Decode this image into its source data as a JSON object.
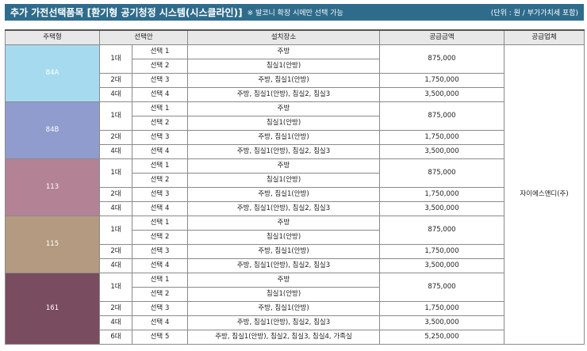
{
  "header": {
    "title": "추가 가전선택품목 [환기형 공기청정 시스템(시스클라인)]",
    "note": "※ 발코니 확장 시에만 선택 가능",
    "unit": "(단위 : 원 / 부가가치세 포함)"
  },
  "columns": [
    "주택형",
    "선택안",
    "설치장소",
    "공급금액",
    "공급업체"
  ],
  "vendor": "자이에스앤디(주)",
  "groups": [
    {
      "type": "84A",
      "color": "#a6dbef",
      "rows": [
        {
          "units": "1대",
          "option": "선택 1",
          "place": "주방",
          "price": "875,000"
        },
        {
          "units": "1대",
          "option": "선택 2",
          "place": "침실1(안방)",
          "price": "875,000"
        },
        {
          "units": "2대",
          "option": "선택 3",
          "place": "주방, 침실1(안방)",
          "price": "1,750,000"
        },
        {
          "units": "4대",
          "option": "선택 4",
          "place": "주방, 침실1(안방), 침실2, 침실3",
          "price": "3,500,000"
        }
      ]
    },
    {
      "type": "84B",
      "color": "#8f9ccd",
      "rows": [
        {
          "units": "1대",
          "option": "선택 1",
          "place": "주방",
          "price": "875,000"
        },
        {
          "units": "1대",
          "option": "선택 2",
          "place": "침실1(안방)",
          "price": "875,000"
        },
        {
          "units": "2대",
          "option": "선택 3",
          "place": "주방, 침실1(안방)",
          "price": "1,750,000"
        },
        {
          "units": "4대",
          "option": "선택 4",
          "place": "주방, 침실1(안방), 침실2, 침실3",
          "price": "3,500,000"
        }
      ]
    },
    {
      "type": "113",
      "color": "#b38294",
      "rows": [
        {
          "units": "1대",
          "option": "선택 1",
          "place": "주방",
          "price": "875,000"
        },
        {
          "units": "1대",
          "option": "선택 2",
          "place": "침실1(안방)",
          "price": "875,000"
        },
        {
          "units": "2대",
          "option": "선택 3",
          "place": "주방, 침실1(안방)",
          "price": "1,750,000"
        },
        {
          "units": "4대",
          "option": "선택 4",
          "place": "주방, 침실1(안방), 침실2, 침실3",
          "price": "3,500,000"
        }
      ]
    },
    {
      "type": "115",
      "color": "#b39a80",
      "rows": [
        {
          "units": "1대",
          "option": "선택 1",
          "place": "주방",
          "price": "875,000"
        },
        {
          "units": "1대",
          "option": "선택 2",
          "place": "침실1(안방)",
          "price": "875,000"
        },
        {
          "units": "2대",
          "option": "선택 3",
          "place": "주방, 침실1(안방)",
          "price": "1,750,000"
        },
        {
          "units": "4대",
          "option": "선택 4",
          "place": "주방, 침실1(안방), 침실2, 침실3",
          "price": "3,500,000"
        }
      ]
    },
    {
      "type": "161",
      "color": "#7a4c5f",
      "rows": [
        {
          "units": "1대",
          "option": "선택 1",
          "place": "주방",
          "price": "875,000"
        },
        {
          "units": "1대",
          "option": "선택 2",
          "place": "침실1(안방)",
          "price": "875,000"
        },
        {
          "units": "2대",
          "option": "선택 3",
          "place": "주방, 침실1(안방)",
          "price": "1,750,000"
        },
        {
          "units": "4대",
          "option": "선택 4",
          "place": "주방, 침실1(안방), 침실2, 침실3",
          "price": "3,500,000"
        },
        {
          "units": "6대",
          "option": "선택 5",
          "place": "주방, 침실1(안방), 침실2, 침실3, 침실4, 가족실",
          "price": "5,250,000"
        }
      ]
    }
  ]
}
